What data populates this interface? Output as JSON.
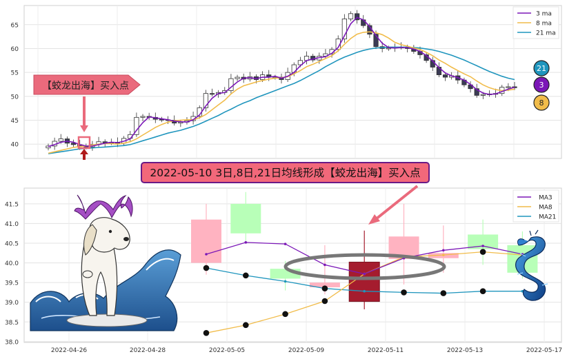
{
  "chart_data": [
    {
      "type": "candlestick",
      "panel": "top",
      "ylim": [
        37,
        69
      ],
      "yticks": [
        40,
        45,
        50,
        55,
        60,
        65
      ],
      "grid": true,
      "legend_placement": "top-right",
      "legend": [
        "3 ma",
        "8 ma",
        "21 ma"
      ],
      "callout_arrow": "【蛟龙出海】买入点",
      "ma_badges": [
        "21",
        "3",
        "8"
      ],
      "closes": [
        39.6,
        40.6,
        41.1,
        40.2,
        39.9,
        39.6,
        39.4,
        39.9,
        40.5,
        40.3,
        40.4,
        40.2,
        41.2,
        42.0,
        45.6,
        45.8,
        45.6,
        45.2,
        45.1,
        45.0,
        44.4,
        44.6,
        44.9,
        45.8,
        47.6,
        50.6,
        50.5,
        50.8,
        51.2,
        53.7,
        54.0,
        53.6,
        54.1,
        53.5,
        54.5,
        54.0,
        54.0,
        53.5,
        55.0,
        56.6,
        57.5,
        58.4,
        57.6,
        58.4,
        58.9,
        59.8,
        62.0,
        66.2,
        67.3,
        66.0,
        64.8,
        63.0,
        60.4,
        60.0,
        60.1,
        60.3,
        60.3,
        60.0,
        59.4,
        58.7,
        57.5,
        56.1,
        54.5,
        54.0,
        54.3,
        53.4,
        52.4,
        51.6,
        50.2,
        50.4,
        50.5,
        50.6,
        51.9,
        52.0,
        51.8
      ],
      "ma3": [
        39.5,
        39.9,
        40.4,
        40.6,
        40.4,
        39.9,
        39.6,
        39.6,
        39.9,
        40.2,
        40.4,
        40.3,
        40.6,
        41.1,
        42.9,
        44.5,
        45.7,
        45.5,
        45.3,
        45.1,
        44.8,
        44.7,
        44.6,
        45.1,
        46.1,
        48.0,
        49.6,
        50.6,
        50.8,
        51.9,
        53.0,
        53.8,
        53.9,
        53.7,
        54.0,
        54.0,
        54.2,
        53.8,
        54.2,
        55.0,
        56.4,
        57.5,
        57.8,
        58.1,
        58.3,
        59.0,
        60.2,
        62.7,
        65.2,
        66.5,
        66.0,
        64.6,
        62.7,
        61.1,
        60.2,
        60.1,
        60.2,
        60.2,
        59.9,
        59.4,
        58.5,
        57.4,
        56.0,
        54.9,
        54.3,
        53.9,
        53.4,
        52.5,
        51.4,
        50.7,
        50.4,
        50.5,
        51.0,
        51.5,
        51.9
      ],
      "ma8": [
        38.1,
        38.4,
        38.7,
        39.0,
        39.3,
        39.5,
        39.6,
        39.8,
        40.0,
        40.1,
        40.1,
        40.0,
        40.2,
        40.5,
        41.1,
        41.9,
        42.7,
        43.5,
        44.1,
        44.6,
        44.9,
        45.0,
        45.1,
        45.1,
        45.5,
        46.2,
        47.2,
        48.2,
        49.2,
        50.5,
        51.5,
        52.2,
        52.6,
        53.0,
        53.3,
        53.6,
        53.8,
        53.9,
        54.1,
        54.7,
        55.4,
        56.2,
        56.7,
        57.3,
        57.9,
        58.5,
        59.5,
        60.9,
        62.1,
        63.0,
        63.4,
        63.5,
        63.3,
        62.9,
        62.2,
        61.3,
        60.8,
        60.5,
        60.1,
        59.8,
        59.2,
        58.5,
        57.6,
        56.9,
        56.1,
        55.4,
        54.7,
        54.1,
        53.2,
        52.4,
        51.8,
        51.4,
        51.2,
        51.3,
        51.5
      ],
      "ma21": [
        38.0,
        38.2,
        38.4,
        38.6,
        38.8,
        39.0,
        39.1,
        39.2,
        39.3,
        39.4,
        39.5,
        39.6,
        39.7,
        39.9,
        40.3,
        40.7,
        41.1,
        41.5,
        41.9,
        42.3,
        42.6,
        42.9,
        43.3,
        43.7,
        44.2,
        44.8,
        45.4,
        46.0,
        46.7,
        47.3,
        48.0,
        48.6,
        49.1,
        49.7,
        50.2,
        50.7,
        51.2,
        51.7,
        52.2,
        52.7,
        53.3,
        54.0,
        54.7,
        55.4,
        56.2,
        56.9,
        57.6,
        58.2,
        58.7,
        59.2,
        59.6,
        59.9,
        60.1,
        60.2,
        60.3,
        60.3,
        60.3,
        60.3,
        60.2,
        60.1,
        59.9,
        59.7,
        59.4,
        59.0,
        58.6,
        58.1,
        57.6,
        57.0,
        56.4,
        55.8,
        55.2,
        54.7,
        54.2,
        53.8,
        53.5
      ]
    },
    {
      "type": "candlestick",
      "panel": "bottom",
      "categories": [
        "2022-04-26",
        "2022-04-28",
        "2022-05-05",
        "2022-05-09",
        "2022-05-11",
        "2022-05-13",
        "2022-05-17"
      ],
      "ylim": [
        37.98,
        41.9
      ],
      "yticks": [
        38.0,
        38.5,
        39.0,
        39.5,
        40.0,
        40.5,
        41.0,
        41.5
      ],
      "grid": true,
      "legend_placement": "top-right",
      "legend": [
        "MA3",
        "MA8",
        "MA21"
      ],
      "candles": [
        {
          "i": 0,
          "open": 40.0,
          "close": 41.1,
          "high": 41.5,
          "low": 39.7,
          "color": "#ffb3c1"
        },
        {
          "i": 1,
          "open": 40.75,
          "close": 41.5,
          "high": 41.8,
          "low": 40.5,
          "color": "#b8ffb8"
        },
        {
          "i": 2,
          "open": 39.6,
          "close": 39.85,
          "high": 40.05,
          "low": 39.3,
          "color": "#b8ffb8"
        },
        {
          "i": 3,
          "open": 39.5,
          "close": 39.38,
          "high": 40.45,
          "low": 39.2,
          "color": "#ffb3c1"
        },
        {
          "i": 4,
          "open": 40.02,
          "close": 39.02,
          "high": 40.82,
          "low": 38.82,
          "color": "#a51c2e"
        },
        {
          "i": 5,
          "open": 40.67,
          "close": 40.1,
          "high": 41.5,
          "low": 39.45,
          "color": "#ffb3c1"
        },
        {
          "i": 6,
          "open": 40.25,
          "close": 40.12,
          "high": 40.95,
          "low": 39.75,
          "color": "#ffb3c1"
        },
        {
          "i": 7,
          "open": 40.35,
          "close": 40.72,
          "high": 41.1,
          "low": 39.95,
          "color": "#b8ffb8"
        },
        {
          "i": 8,
          "open": 39.75,
          "close": 40.45,
          "high": 40.8,
          "low": 39.6,
          "color": "#b8ffb8"
        }
      ],
      "ma3": [
        40.22,
        40.52,
        40.48,
        39.95,
        39.72,
        40.12,
        40.32,
        40.43,
        40.22
      ],
      "ma8": [
        38.22,
        38.42,
        38.7,
        39.03,
        39.72,
        40.15,
        40.2,
        40.28,
        40.2
      ],
      "ma21": [
        39.87,
        39.68,
        39.53,
        39.35,
        39.28,
        39.25,
        39.23,
        39.28,
        39.28
      ],
      "dots": [
        {
          "i": 0,
          "v": 39.87
        },
        {
          "i": 1,
          "v": 39.68
        },
        {
          "i": 3,
          "v": 39.35
        },
        {
          "i": 5,
          "v": 39.25
        },
        {
          "i": 6,
          "v": 39.23
        },
        {
          "i": 7,
          "v": 39.28
        },
        {
          "i": 0,
          "v": 38.22
        },
        {
          "i": 1,
          "v": 38.42
        },
        {
          "i": 2,
          "v": 38.7
        },
        {
          "i": 3,
          "v": 39.03
        },
        {
          "i": 7,
          "v": 40.28
        }
      ],
      "banner": "2022-05-10 3日,8日,21日均线形成【蛟龙出海】买入点"
    }
  ],
  "colors": {
    "ma3": "#7b17b7",
    "ma8": "#f1bc4a",
    "ma21": "#1f95bd",
    "up": "#ffffff",
    "down": "#3b3b55",
    "callout": "#ea6a7c",
    "banner_bg": "#f2687a",
    "banner_border": "#6a1a86"
  },
  "icons": [
    "dragon-dog-surfing-illustration",
    "blue-dragon-illustration"
  ]
}
